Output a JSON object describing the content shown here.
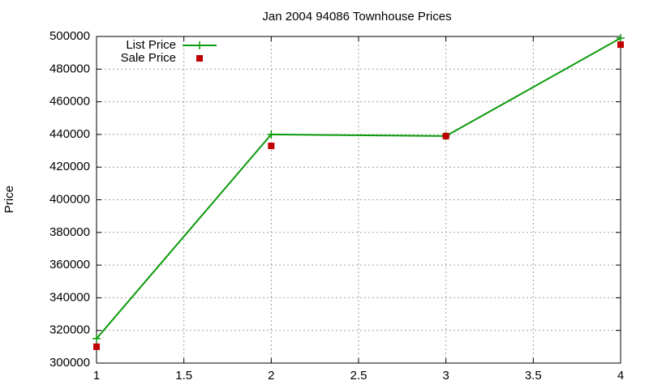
{
  "chart_data": {
    "type": "line",
    "title": "Jan 2004 94086 Townhouse Prices",
    "y_label": "Price",
    "x": [
      1,
      2,
      3,
      4
    ],
    "series": [
      {
        "name": "List Price",
        "color": "#0a9a0a",
        "mode": "linespoints",
        "values": [
          315000,
          440000,
          439000,
          499000
        ]
      },
      {
        "name": "Sale Price",
        "color": "#c00000",
        "mode": "points",
        "values": [
          310000,
          433000,
          439000,
          495000
        ]
      }
    ],
    "xlim": [
      1,
      4
    ],
    "xticks": [
      1,
      1.5,
      2,
      2.5,
      3,
      3.5,
      4
    ],
    "ylim": [
      300000,
      500000
    ],
    "yticks": [
      300000,
      320000,
      340000,
      360000,
      380000,
      400000,
      420000,
      440000,
      460000,
      480000,
      500000
    ],
    "grid": true,
    "legend": "top-left"
  }
}
